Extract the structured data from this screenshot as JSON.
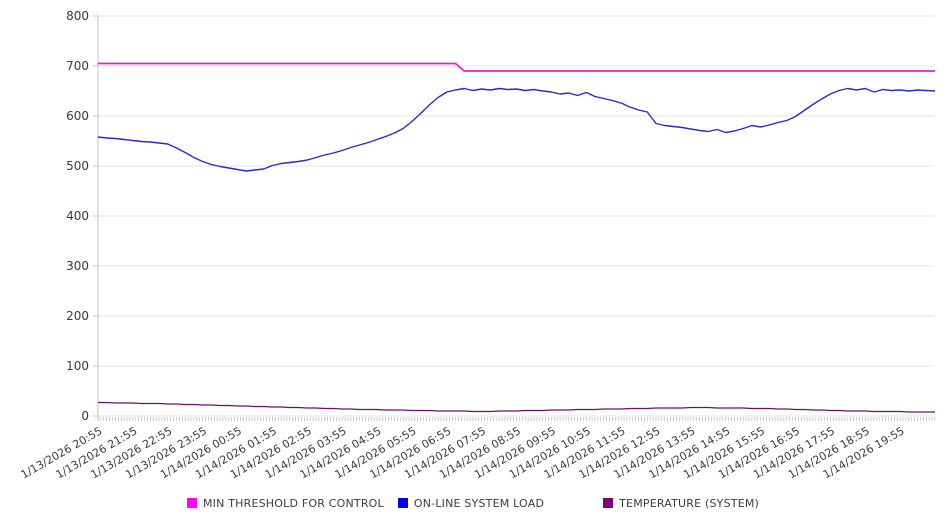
{
  "chart_data": {
    "type": "line",
    "title": "",
    "xlabel": "",
    "ylabel": "",
    "ylim": [
      0,
      800
    ],
    "ytick_step": 100,
    "grid": true,
    "legend_position": "bottom",
    "y_tick_labels": [
      "0",
      "100",
      "200",
      "300",
      "400",
      "500",
      "600",
      "700",
      "800"
    ],
    "x_labels": [
      "1/13/2026 20:55",
      "1/13/2026 21:55",
      "1/13/2026 22:55",
      "1/13/2026 23:55",
      "1/14/2026 00:55",
      "1/14/2026 01:55",
      "1/14/2026 02:55",
      "1/14/2026 03:55",
      "1/14/2026 04:55",
      "1/14/2026 05:55",
      "1/14/2026 06:55",
      "1/14/2026 07:55",
      "1/14/2026 08:55",
      "1/14/2026 09:55",
      "1/14/2026 10:55",
      "1/14/2026 11:55",
      "1/14/2026 12:55",
      "1/14/2026 13:55",
      "1/14/2026 14:55",
      "1/14/2026 15:55",
      "1/14/2026 16:55",
      "1/14/2026 17:55",
      "1/14/2026 18:55",
      "1/14/2026 19:55"
    ],
    "points_per_label": 4,
    "minor_ticks_per_point": 3,
    "series": [
      {
        "name": "MIN THRESHOLD FOR CONTROL",
        "color": "#e11fd0",
        "legend_color": "#ff00ff",
        "values": [
          705,
          705,
          705,
          705,
          705,
          705,
          705,
          705,
          705,
          705,
          705,
          705,
          705,
          705,
          705,
          705,
          705,
          705,
          705,
          705,
          705,
          705,
          705,
          705,
          705,
          705,
          705,
          705,
          705,
          705,
          705,
          705,
          705,
          705,
          705,
          705,
          705,
          705,
          705,
          705,
          705,
          705,
          690,
          690,
          690,
          690,
          690,
          690,
          690,
          690,
          690,
          690,
          690,
          690,
          690,
          690,
          690,
          690,
          690,
          690,
          690,
          690,
          690,
          690,
          690,
          690,
          690,
          690,
          690,
          690,
          690,
          690,
          690,
          690,
          690,
          690,
          690,
          690,
          690,
          690,
          690,
          690,
          690,
          690,
          690,
          690,
          690,
          690,
          690,
          690,
          690,
          690,
          690,
          690,
          690,
          690,
          690
        ]
      },
      {
        "name": "ON-LINE SYSTEM LOAD",
        "color": "#2a2acb",
        "legend_color": "#0000ee",
        "values": [
          558,
          556,
          555,
          553,
          551,
          549,
          548,
          546,
          544,
          536,
          527,
          517,
          509,
          503,
          499,
          496,
          493,
          490,
          492,
          494,
          501,
          505,
          507,
          509,
          512,
          517,
          522,
          526,
          531,
          537,
          542,
          547,
          553,
          559,
          566,
          575,
          589,
          605,
          622,
          637,
          648,
          652,
          655,
          651,
          654,
          652,
          655,
          653,
          654,
          651,
          653,
          650,
          648,
          644,
          646,
          641,
          647,
          639,
          635,
          631,
          626,
          618,
          612,
          608,
          585,
          581,
          579,
          577,
          574,
          571,
          569,
          573,
          567,
          570,
          575,
          581,
          578,
          582,
          587,
          591,
          599,
          611,
          623,
          634,
          644,
          651,
          655,
          652,
          655,
          648,
          653,
          651,
          652,
          650,
          652,
          651,
          650
        ]
      },
      {
        "name": "TEMPERATURE (SYSTEM)",
        "color": "#6e0d6e",
        "legend_color": "#800080",
        "values": [
          27,
          27,
          26,
          26,
          26,
          25,
          25,
          25,
          24,
          24,
          23,
          23,
          22,
          22,
          21,
          21,
          20,
          20,
          19,
          19,
          18,
          18,
          17,
          17,
          16,
          16,
          15,
          15,
          14,
          14,
          13,
          13,
          13,
          12,
          12,
          12,
          11,
          11,
          11,
          10,
          10,
          10,
          10,
          9,
          9,
          9,
          10,
          10,
          10,
          11,
          11,
          11,
          12,
          12,
          12,
          13,
          13,
          13,
          14,
          14,
          14,
          15,
          15,
          15,
          16,
          16,
          16,
          16,
          17,
          17,
          17,
          16,
          16,
          16,
          16,
          15,
          15,
          15,
          14,
          14,
          13,
          13,
          12,
          12,
          11,
          11,
          10,
          10,
          10,
          9,
          9,
          9,
          9,
          8,
          8,
          8,
          8
        ]
      }
    ]
  },
  "legend": {
    "items": [
      {
        "label": "MIN THRESHOLD FOR CONTROL"
      },
      {
        "label": "ON-LINE SYSTEM LOAD"
      },
      {
        "label": "TEMPERATURE (SYSTEM)"
      }
    ]
  }
}
